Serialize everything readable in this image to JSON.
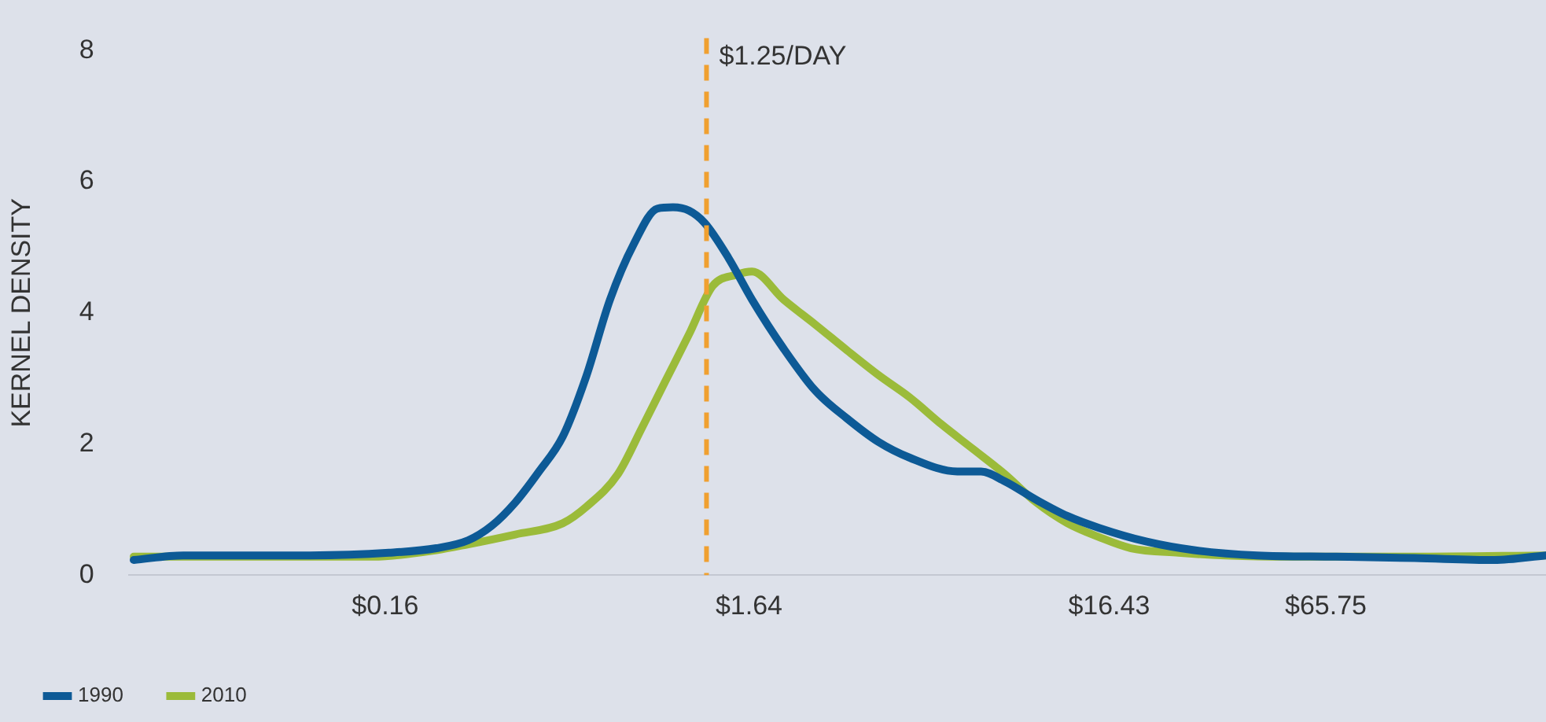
{
  "chart_data": {
    "type": "line",
    "ylabel": "KERNEL DENSITY",
    "log": "x",
    "xlim": [
      0.031,
      269
    ],
    "xticks": [
      {
        "value": 0.16,
        "label": "$0.16"
      },
      {
        "value": 1.64,
        "label": "$1.64"
      },
      {
        "value": 16.43,
        "label": "$16.43"
      },
      {
        "value": 65.75,
        "label": "$65.75"
      }
    ],
    "ylim": [
      0,
      8
    ],
    "yticks": [
      0,
      2,
      4,
      6,
      8
    ],
    "grid": false,
    "legend": "bottom left",
    "marker": "none",
    "line_style": "solid",
    "ref_lines": [
      {
        "axis": "x",
        "value": 1.25,
        "label": "$1.25/DAY",
        "color": "#f0a030",
        "line_style": "dashed"
      }
    ],
    "series": [
      {
        "name": "1990",
        "color": "#0d5a96",
        "x": [
          0.032,
          0.044,
          0.099,
          0.164,
          0.222,
          0.272,
          0.316,
          0.368,
          0.428,
          0.498,
          0.579,
          0.674,
          0.785,
          0.913,
          1.009,
          1.117,
          1.236,
          1.438,
          1.673,
          2.05,
          2.51,
          3.07,
          3.76,
          4.59,
          6.22,
          7.24,
          8.43,
          10.3,
          12.6,
          15.4,
          20.9,
          28.3,
          42.3,
          70.2,
          116,
          193,
          269
        ],
        "values": [
          0.23,
          0.3,
          0.3,
          0.34,
          0.41,
          0.53,
          0.75,
          1.11,
          1.58,
          2.11,
          3.03,
          4.2,
          5.05,
          5.59,
          5.61,
          5.56,
          5.37,
          4.84,
          4.2,
          3.45,
          2.81,
          2.39,
          2.03,
          1.79,
          1.58,
          1.58,
          1.43,
          1.15,
          0.9,
          0.72,
          0.51,
          0.38,
          0.3,
          0.28,
          0.26,
          0.23,
          0.3
        ]
      },
      {
        "name": "2010",
        "color": "#9bbb3a",
        "x": [
          0.032,
          0.06,
          0.148,
          0.222,
          0.272,
          0.368,
          0.498,
          0.579,
          0.709,
          0.826,
          0.961,
          1.117,
          1.3,
          1.51,
          1.673,
          2.05,
          2.51,
          3.07,
          3.76,
          4.59,
          5.62,
          6.89,
          8.43,
          10.3,
          12.6,
          15.4,
          18.9,
          25.6,
          34.6,
          51.9,
          116,
          269
        ],
        "values": [
          0.28,
          0.28,
          0.28,
          0.38,
          0.47,
          0.62,
          0.79,
          1.04,
          1.54,
          2.24,
          2.96,
          3.67,
          4.41,
          4.58,
          4.63,
          4.2,
          3.82,
          3.43,
          3.05,
          2.71,
          2.3,
          1.92,
          1.54,
          1.11,
          0.79,
          0.58,
          0.41,
          0.34,
          0.3,
          0.28,
          0.28,
          0.3
        ]
      }
    ]
  }
}
